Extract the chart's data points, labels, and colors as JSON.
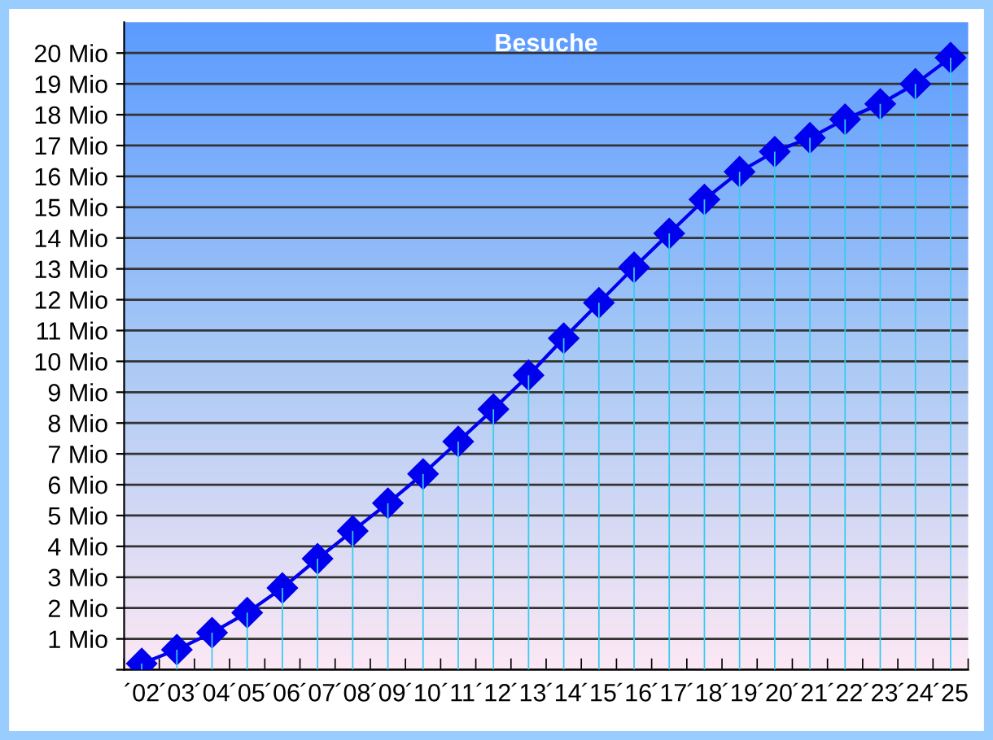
{
  "chart_data": {
    "type": "line",
    "title": "Besuche",
    "categories": [
      "´02",
      "´03",
      "´04",
      "´05",
      "´06",
      "´07",
      "´08",
      "´09",
      "´10",
      "´11",
      "´12",
      "´13",
      "´14",
      "´15",
      "´16",
      "´17",
      "´18",
      "´19",
      "´20",
      "´21",
      "´22",
      "´23",
      "´24",
      "´25"
    ],
    "series": [
      {
        "type": "bar",
        "color": "#33ccee",
        "values": [
          0.2,
          0.65,
          1.2,
          1.85,
          2.65,
          3.6,
          4.5,
          5.4,
          6.35,
          7.4,
          8.45,
          9.55,
          10.75,
          11.9,
          13.05,
          14.15,
          15.25,
          16.15,
          16.8,
          17.25,
          17.85,
          18.35,
          19.0,
          19.85
        ]
      },
      {
        "color": "#0000ee",
        "values": [
          0.2,
          0.65,
          1.2,
          1.85,
          2.65,
          3.6,
          4.5,
          5.4,
          6.35,
          7.4,
          8.45,
          9.55,
          10.75,
          11.9,
          13.05,
          14.15,
          15.25,
          16.15,
          16.8,
          17.25,
          17.85,
          18.35,
          19.0,
          19.85
        ]
      }
    ],
    "ylim": [
      0,
      21
    ],
    "yticks": [
      {
        "value": 0,
        "label": null
      },
      {
        "value": 1,
        "label": "1 Mio"
      },
      {
        "value": 2,
        "label": "2 Mio"
      },
      {
        "value": 3,
        "label": "3 Mio"
      },
      {
        "value": 4,
        "label": "4 Mio"
      },
      {
        "value": 5,
        "label": "5 Mio"
      },
      {
        "value": 6,
        "label": "6 Mio"
      },
      {
        "value": 7,
        "label": "7 Mio"
      },
      {
        "value": 8,
        "label": "8 Mio"
      },
      {
        "value": 9,
        "label": "9 Mio"
      },
      {
        "value": 10,
        "label": "10 Mio"
      },
      {
        "value": 11,
        "label": "11 Mio"
      },
      {
        "value": 12,
        "label": "12 Mio"
      },
      {
        "value": 13,
        "label": "13 Mio"
      },
      {
        "value": 14,
        "label": "14 Mio"
      },
      {
        "value": 15,
        "label": "15 Mio"
      },
      {
        "value": 16,
        "label": "16 Mio"
      },
      {
        "value": 17,
        "label": "17 Mio"
      },
      {
        "value": 18,
        "label": "18 Mio"
      },
      {
        "value": 19,
        "label": "19 Mio"
      },
      {
        "value": 20,
        "label": "20 Mio"
      }
    ],
    "grid": "y",
    "marker": "diamond",
    "line_style": "solid",
    "legend": false
  }
}
